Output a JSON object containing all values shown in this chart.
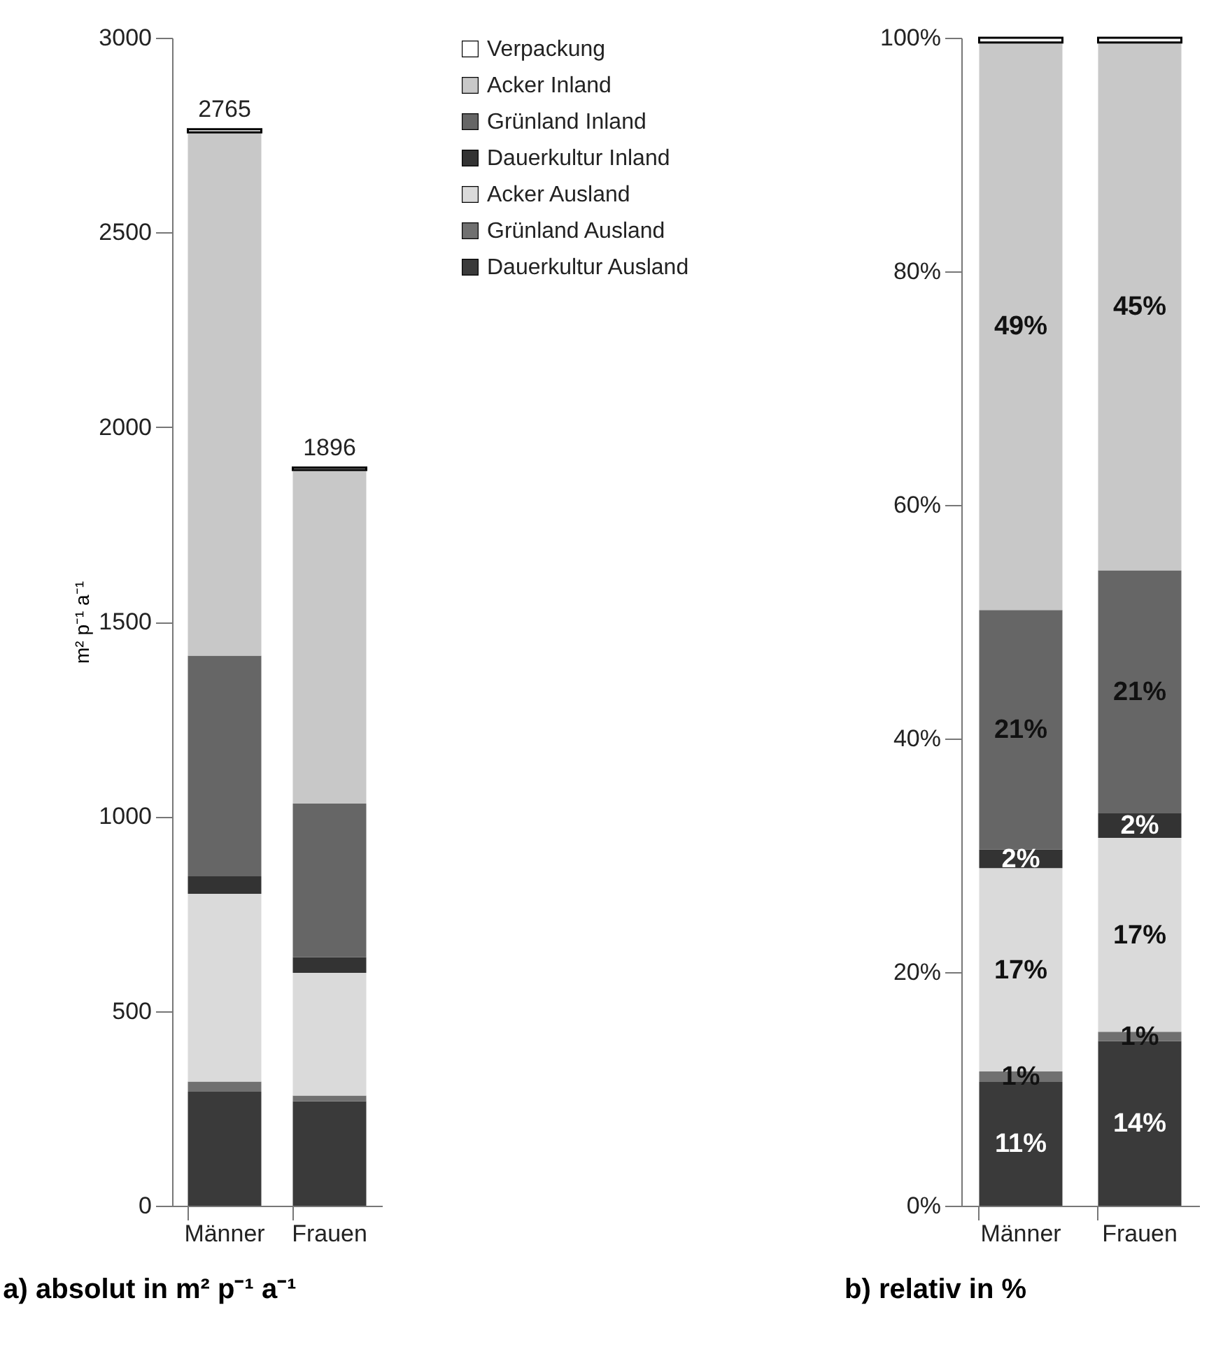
{
  "chart_data": [
    {
      "type": "bar",
      "title": "a) absolut in m² p⁻¹ a⁻¹",
      "ylabel": "m² p⁻¹ a⁻¹",
      "categories": [
        "Männer",
        "Frauen"
      ],
      "stacked": true,
      "ylim": [
        0,
        3000
      ],
      "yticks": [
        0,
        500,
        1000,
        1500,
        2000,
        2500,
        3000
      ],
      "legend": "right",
      "totals": [
        "2765",
        "1896"
      ],
      "series": [
        {
          "name": "Dauerkultur Ausland",
          "color": "#3a3a3a",
          "values": [
            293,
            268
          ]
        },
        {
          "name": "Grünland Ausland",
          "color": "#707070",
          "values": [
            26,
            15
          ]
        },
        {
          "name": "Acker Ausland",
          "color": "#dadada",
          "values": [
            482,
            315
          ]
        },
        {
          "name": "Dauerkultur Inland",
          "color": "#333333",
          "values": [
            45,
            40
          ]
        },
        {
          "name": "Grünland Inland",
          "color": "#666666",
          "values": [
            567,
            395
          ]
        },
        {
          "name": "Acker Inland",
          "color": "#c8c8c8",
          "values": [
            1344,
            857
          ]
        },
        {
          "name": "Verpackung",
          "color": "#ffffff",
          "values": [
            8,
            6
          ]
        }
      ]
    },
    {
      "type": "bar",
      "title": "b) relativ in %",
      "categories": [
        "Männer",
        "Frauen"
      ],
      "stacked": true,
      "ylim": [
        0,
        100
      ],
      "yticks": [
        {
          "value": 0,
          "label": "0%"
        },
        {
          "value": 20,
          "label": "20%"
        },
        {
          "value": 40,
          "label": "40%"
        },
        {
          "value": 60,
          "label": "60%"
        },
        {
          "value": 80,
          "label": "80%"
        },
        {
          "value": 100,
          "label": "100%"
        }
      ],
      "series": [
        {
          "color": "#3a3a3a",
          "values": [
            10.6,
            14.1
          ],
          "value_labels": [
            "11%",
            "14%"
          ]
        },
        {
          "color": "#707070",
          "values": [
            0.9,
            0.8
          ],
          "value_labels": [
            "1%",
            "1%"
          ]
        },
        {
          "color": "#dadada",
          "values": [
            17.4,
            16.6
          ],
          "value_labels": [
            "17%",
            "17%"
          ]
        },
        {
          "color": "#333333",
          "values": [
            1.6,
            2.1
          ],
          "value_labels": [
            "2%",
            "2%"
          ]
        },
        {
          "color": "#666666",
          "values": [
            20.5,
            20.8
          ],
          "value_labels": [
            "21%",
            "21%"
          ]
        },
        {
          "color": "#c8c8c8",
          "values": [
            48.6,
            45.2
          ],
          "value_labels": [
            "49%",
            "45%"
          ]
        },
        {
          "color": "#ffffff",
          "values": [
            0.4,
            0.4
          ],
          "value_labels": [
            null,
            null
          ]
        }
      ]
    }
  ]
}
